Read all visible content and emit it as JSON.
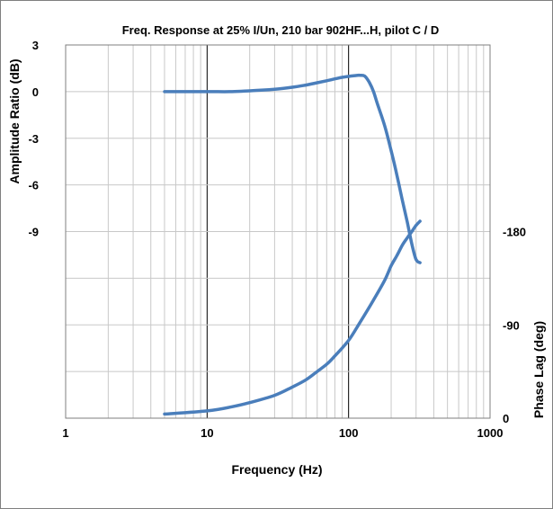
{
  "chart_data": {
    "type": "line",
    "title": "Freq. Response at 25% I/Un, 210 bar 902HF...H, pilot C / D",
    "xlabel": "Frequency (Hz)",
    "ylabel_left": "Amplitude Ratio (dB)",
    "ylabel_right": "Phase Lag (deg)",
    "x_scale": "log",
    "xlim": [
      1,
      1000
    ],
    "x_ticks": [
      "1",
      "10",
      "100",
      "1000"
    ],
    "y_left_ticks": [
      "3",
      "0",
      "-3",
      "-6",
      "-9"
    ],
    "y_left_tick_values": [
      3,
      0,
      -3,
      -6,
      -9
    ],
    "y_right_ticks": [
      "-180",
      "-90",
      "0"
    ],
    "y_right_tick_values": [
      180,
      90,
      0
    ],
    "ylim_left": [
      -21,
      3
    ],
    "ylim_right": [
      0,
      360
    ],
    "grid": true,
    "line_color": "#4a7ebb",
    "series": [
      {
        "axis": "left",
        "x": [
          5,
          10,
          15,
          20,
          30,
          40,
          50,
          60,
          70,
          80,
          90,
          100,
          110,
          120,
          130,
          140,
          150,
          160,
          180,
          200,
          220,
          240,
          260,
          280,
          300,
          320
        ],
        "y": [
          0,
          0,
          0,
          0.05,
          0.15,
          0.28,
          0.42,
          0.57,
          0.7,
          0.82,
          0.92,
          0.98,
          1.03,
          1.05,
          1.0,
          0.6,
          0.0,
          -0.8,
          -2.2,
          -3.8,
          -5.4,
          -7.0,
          -8.4,
          -9.8,
          -10.8,
          -11.0
        ]
      },
      {
        "axis": "right",
        "x": [
          5,
          10,
          15,
          20,
          30,
          40,
          50,
          60,
          70,
          80,
          100,
          120,
          150,
          180,
          200,
          220,
          240,
          260,
          280,
          300,
          320
        ],
        "y": [
          4,
          7,
          11,
          15,
          22,
          30,
          37,
          45,
          52,
          60,
          75,
          92,
          114,
          133,
          147,
          157,
          167,
          174,
          180,
          186,
          190
        ]
      }
    ]
  }
}
